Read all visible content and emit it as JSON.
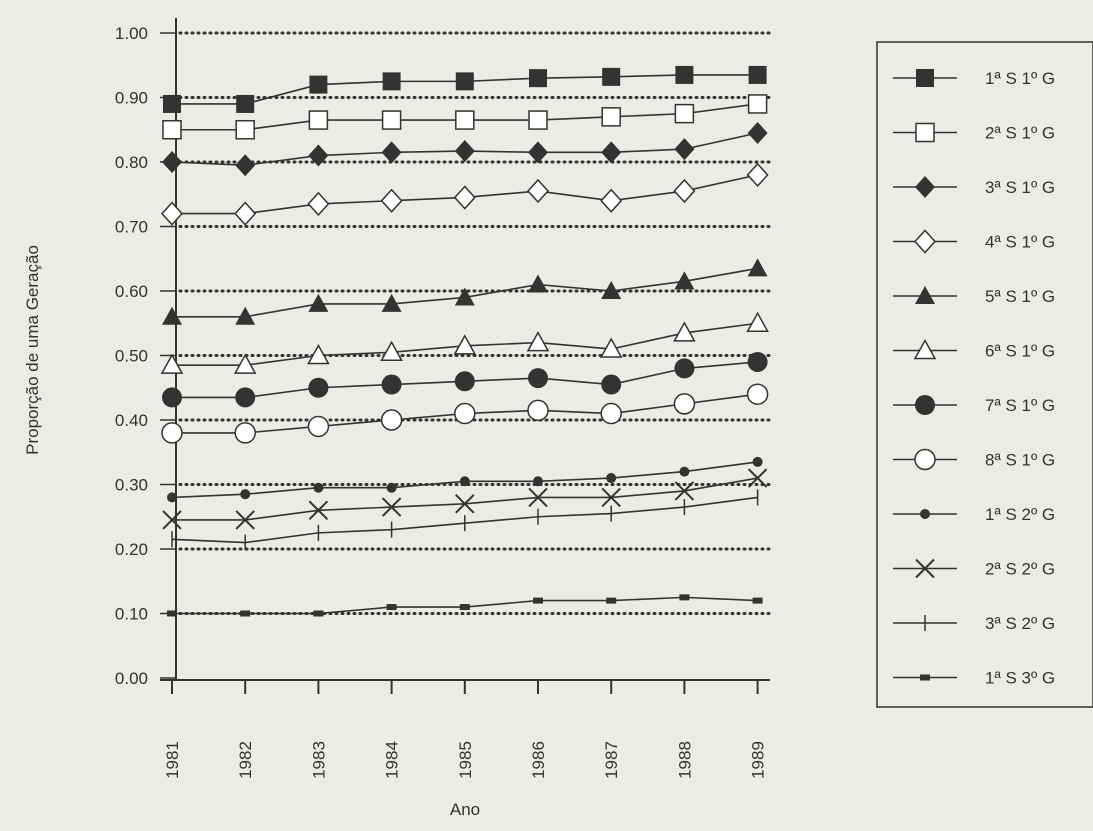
{
  "chart_data": {
    "type": "line",
    "xlabel": "Ano",
    "ylabel": "Proporção de uma Geração",
    "x": [
      "1981",
      "1982",
      "1983",
      "1984",
      "1985",
      "1986",
      "1987",
      "1988",
      "1989"
    ],
    "ylim": [
      0,
      1
    ],
    "yticks": [
      "0.00",
      "0.10",
      "0.20",
      "0.30",
      "0.40",
      "0.50",
      "0.60",
      "0.70",
      "0.80",
      "0.90",
      "1.00"
    ],
    "grid": "dotted horizontal lines",
    "legend_position": "right",
    "series": [
      {
        "name": "1ª S 1º G",
        "marker": "square-filled",
        "values": [
          0.89,
          0.89,
          0.92,
          0.925,
          0.925,
          0.93,
          0.932,
          0.935,
          0.935
        ]
      },
      {
        "name": "2ª S 1º G",
        "marker": "square-open",
        "values": [
          0.85,
          0.85,
          0.865,
          0.865,
          0.865,
          0.865,
          0.87,
          0.875,
          0.89
        ]
      },
      {
        "name": "3ª S 1º G",
        "marker": "diamond-filled",
        "values": [
          0.8,
          0.795,
          0.81,
          0.815,
          0.817,
          0.815,
          0.815,
          0.82,
          0.845
        ]
      },
      {
        "name": "4ª S 1º G",
        "marker": "diamond-open",
        "values": [
          0.72,
          0.72,
          0.735,
          0.74,
          0.745,
          0.755,
          0.74,
          0.755,
          0.78
        ]
      },
      {
        "name": "5ª S 1º G",
        "marker": "triangle-filled",
        "values": [
          0.56,
          0.56,
          0.58,
          0.58,
          0.59,
          0.61,
          0.6,
          0.615,
          0.635
        ]
      },
      {
        "name": "6ª S 1º G",
        "marker": "triangle-open",
        "values": [
          0.485,
          0.485,
          0.5,
          0.505,
          0.515,
          0.52,
          0.51,
          0.535,
          0.55
        ]
      },
      {
        "name": "7ª S 1º G",
        "marker": "circle-filled",
        "values": [
          0.435,
          0.435,
          0.45,
          0.455,
          0.46,
          0.465,
          0.455,
          0.48,
          0.49
        ]
      },
      {
        "name": "8ª S 1º G",
        "marker": "circle-open",
        "values": [
          0.38,
          0.38,
          0.39,
          0.4,
          0.41,
          0.415,
          0.41,
          0.425,
          0.44
        ]
      },
      {
        "name": "1ª S 2º G",
        "marker": "dot",
        "values": [
          0.28,
          0.285,
          0.295,
          0.295,
          0.305,
          0.305,
          0.31,
          0.32,
          0.335
        ]
      },
      {
        "name": "2ª S 2º G",
        "marker": "x",
        "values": [
          0.245,
          0.245,
          0.26,
          0.265,
          0.27,
          0.28,
          0.28,
          0.29,
          0.31
        ]
      },
      {
        "name": "3ª S 2º G",
        "marker": "plus",
        "values": [
          0.215,
          0.21,
          0.225,
          0.23,
          0.24,
          0.25,
          0.255,
          0.265,
          0.28
        ]
      },
      {
        "name": "1ª S 3º G",
        "marker": "dash",
        "values": [
          0.1,
          0.1,
          0.1,
          0.11,
          0.11,
          0.12,
          0.12,
          0.125,
          0.12
        ]
      }
    ]
  }
}
